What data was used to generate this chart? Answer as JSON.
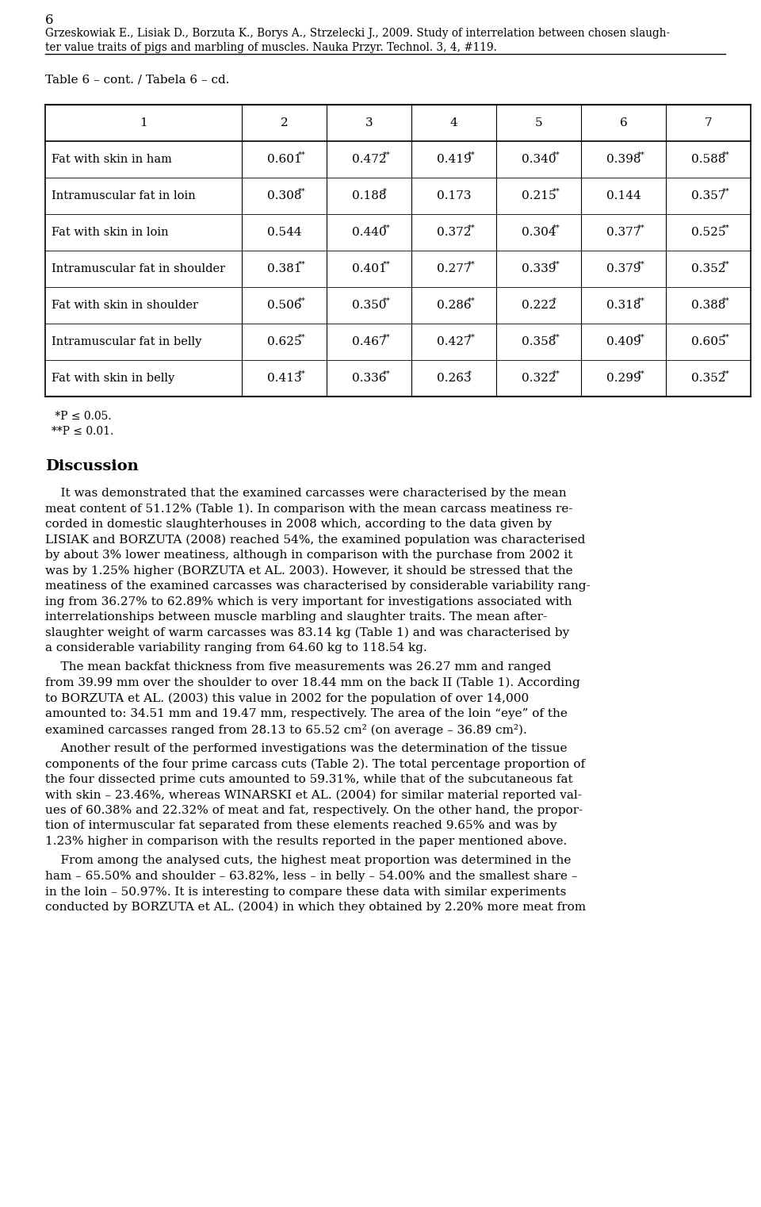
{
  "page_number": "6",
  "header_line1": "Grzeskowiak E., Lisiak D., Borzuta K., Borys A., Strzelecki J., 2009. Study of interrelation between chosen slaugh-",
  "header_line2": "ter value traits of pigs and marbling of muscles. Nauka Przyr. Technol. 3, 4, #119.",
  "table_caption": "Table 6 – cont. / Tabela 6 – cd.",
  "col_headers": [
    "1",
    "2",
    "3",
    "4",
    "5",
    "6",
    "7"
  ],
  "rows": [
    {
      "label": "Fat with skin in ham",
      "values": [
        "0.601",
        "0.472",
        "0.419",
        "0.340",
        "0.398",
        "0.588"
      ],
      "sups": [
        "**",
        "**",
        "**",
        "**",
        "**",
        "**"
      ]
    },
    {
      "label": "Intramuscular fat in loin",
      "values": [
        "0.308",
        "0.188",
        "0.173",
        "0.215",
        "0.144",
        "0.357"
      ],
      "sups": [
        "**",
        "*",
        "",
        "**",
        "",
        "**"
      ]
    },
    {
      "label": "Fat with skin in loin",
      "values": [
        "0.544",
        "0.440",
        "0.372",
        "0.304",
        "0.377",
        "0.525"
      ],
      "sups": [
        "",
        "**",
        "**",
        "**",
        "**",
        "**"
      ]
    },
    {
      "label": "Intramuscular fat in shoulder",
      "values": [
        "0.381",
        "0.401",
        "0.277",
        "0.339",
        "0.379",
        "0.352"
      ],
      "sups": [
        "**",
        "**",
        "**",
        "**",
        "**",
        "**"
      ]
    },
    {
      "label": "Fat with skin in shoulder",
      "values": [
        "0.506",
        "0.350",
        "0.286",
        "0.222",
        "0.318",
        "0.388"
      ],
      "sups": [
        "**",
        "**",
        "**",
        "*",
        "**",
        "**"
      ]
    },
    {
      "label": "Intramuscular fat in belly",
      "values": [
        "0.625",
        "0.467",
        "0.427",
        "0.358",
        "0.409",
        "0.605"
      ],
      "sups": [
        "**",
        "**",
        "**",
        "**",
        "**",
        "**"
      ]
    },
    {
      "label": "Fat with skin in belly",
      "values": [
        "0.413",
        "0.336",
        "0.263",
        "0.322",
        "0.299",
        "0.352"
      ],
      "sups": [
        "**",
        "**",
        "*",
        "**",
        "**",
        "**"
      ]
    }
  ],
  "footnote1": " *P ≤ 0.05.",
  "footnote2": "**P ≤ 0.01.",
  "section_title": "Discussion",
  "para1_lines": [
    "    It was demonstrated that the examined carcasses were characterised by the mean",
    "meat content of 51.12% (Table 1). In comparison with the mean carcass meatiness re-",
    "corded in domestic slaughterhouses in 2008 which, according to the data given by",
    "LISIAK and BORZUTA (2008) reached 54%, the examined population was characterised",
    "by about 3% lower meatiness, although in comparison with the purchase from 2002 it",
    "was by 1.25% higher (BORZUTA et AL. 2003). However, it should be stressed that the",
    "meatiness of the examined carcasses was characterised by considerable variability rang-",
    "ing from 36.27% to 62.89% which is very important for investigations associated with",
    "interrelationships between muscle marbling and slaughter traits. The mean after-",
    "slaughter weight of warm carcasses was 83.14 kg (Table 1) and was characterised by",
    "a considerable variability ranging from 64.60 kg to 118.54 kg."
  ],
  "para2_lines": [
    "    The mean backfat thickness from five measurements was 26.27 mm and ranged",
    "from 39.99 mm over the shoulder to over 18.44 mm on the back II (Table 1). According",
    "to BORZUTA et AL. (2003) this value in 2002 for the population of over 14,000",
    "amounted to: 34.51 mm and 19.47 mm, respectively. The area of the loin “eye” of the",
    "examined carcasses ranged from 28.13 to 65.52 cm² (on average – 36.89 cm²)."
  ],
  "para3_lines": [
    "    Another result of the performed investigations was the determination of the tissue",
    "components of the four prime carcass cuts (Table 2). The total percentage proportion of",
    "the four dissected prime cuts amounted to 59.31%, while that of the subcutaneous fat",
    "with skin – 23.46%, whereas WINARSKI et AL. (2004) for similar material reported val-",
    "ues of 60.38% and 22.32% of meat and fat, respectively. On the other hand, the propor-",
    "tion of intermuscular fat separated from these elements reached 9.65% and was by",
    "1.23% higher in comparison with the results reported in the paper mentioned above."
  ],
  "para4_lines": [
    "    From among the analysed cuts, the highest meat proportion was determined in the",
    "ham – 65.50% and shoulder – 63.82%, less – in belly – 54.00% and the smallest share –",
    "in the loin – 50.97%. It is interesting to compare these data with similar experiments",
    "conducted by BORZUTA et AL. (2004) in which they obtained by 2.20% more meat from"
  ],
  "background_color": "#ffffff",
  "text_color": "#000000"
}
